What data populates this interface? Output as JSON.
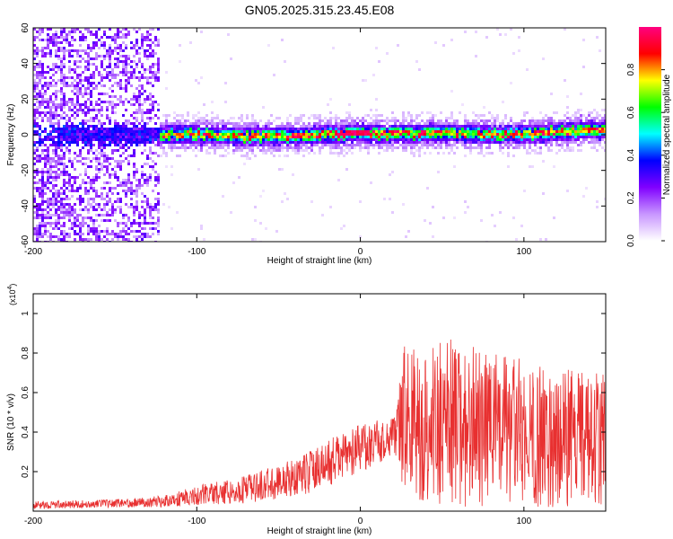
{
  "title": "GN05.2025.315.23.45.E08",
  "chart_data": [
    {
      "type": "heatmap",
      "xlabel": "Height of straight line (km)",
      "ylabel": "Frequency (Hz)",
      "xlim": [
        -200,
        150
      ],
      "ylim": [
        -60,
        60
      ],
      "x_ticks": [
        "-200",
        "-100",
        "0",
        "100"
      ],
      "y_ticks": [
        "-60",
        "-40",
        "-20",
        "0",
        "20",
        "40",
        "60"
      ],
      "colorbar": {
        "label": "Normalized spectral amplitude",
        "range": [
          0,
          1
        ],
        "ticks": [
          "0.0",
          "0.2",
          "0.4",
          "0.6",
          "0.8"
        ],
        "colors": [
          "#ffffff",
          "#c896ff",
          "#8000ff",
          "#0000ff",
          "#00ffff",
          "#00ff00",
          "#ffff00",
          "#ff0000",
          "#ff0080"
        ]
      },
      "ridge": {
        "description_values": [
          {
            "x": -200,
            "y": 0
          },
          {
            "x": -150,
            "y": 0
          },
          {
            "x": -110,
            "y": 0
          },
          {
            "x": -80,
            "y": -0.5
          },
          {
            "x": -40,
            "y": -1
          },
          {
            "x": -20,
            "y": 0
          },
          {
            "x": 0,
            "y": 1
          },
          {
            "x": 20,
            "y": 0
          },
          {
            "x": 50,
            "y": 1
          },
          {
            "x": 80,
            "y": 0
          },
          {
            "x": 110,
            "y": 1
          },
          {
            "x": 150,
            "y": 3
          }
        ]
      }
    },
    {
      "type": "line",
      "xlabel": "Height of straight line (km)",
      "ylabel": "SNR (10 * v/v)",
      "yunit_label": "(x10",
      "yunit_exp": "4",
      "yunit_close": ")",
      "xlim": [
        -200,
        150
      ],
      "ylim": [
        0,
        1.1
      ],
      "x_ticks": [
        "-200",
        "-100",
        "0",
        "100"
      ],
      "y_ticks": [
        "0.2",
        "0.4",
        "0.6",
        "0.8",
        "1"
      ],
      "series": [
        {
          "color": "#e83030",
          "envelope": [
            {
              "x": -200,
              "mean": 0.03,
              "amp": 0.02
            },
            {
              "x": -150,
              "mean": 0.04,
              "amp": 0.02
            },
            {
              "x": -120,
              "mean": 0.05,
              "amp": 0.03
            },
            {
              "x": -100,
              "mean": 0.08,
              "amp": 0.05
            },
            {
              "x": -70,
              "mean": 0.11,
              "amp": 0.07
            },
            {
              "x": -40,
              "mean": 0.17,
              "amp": 0.1
            },
            {
              "x": -20,
              "mean": 0.24,
              "amp": 0.12
            },
            {
              "x": 0,
              "mean": 0.32,
              "amp": 0.12
            },
            {
              "x": 22,
              "mean": 0.38,
              "amp": 0.1
            },
            {
              "x": 25,
              "mean": 0.45,
              "amp": 0.35
            },
            {
              "x": 50,
              "mean": 0.45,
              "amp": 0.45
            },
            {
              "x": 80,
              "mean": 0.42,
              "amp": 0.4
            },
            {
              "x": 110,
              "mean": 0.38,
              "amp": 0.36
            },
            {
              "x": 150,
              "mean": 0.36,
              "amp": 0.34
            }
          ]
        }
      ]
    }
  ]
}
